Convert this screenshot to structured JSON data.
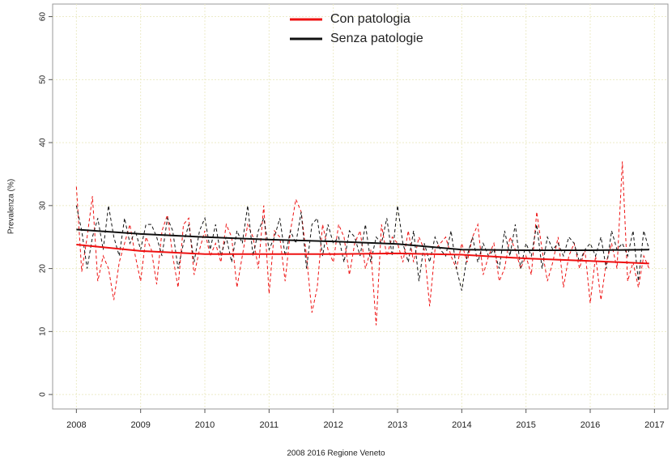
{
  "chart_data": {
    "type": "line",
    "x_label": "2008 2016 Regione Veneto",
    "y_label": "Prevalenza (%)",
    "xlim": [
      2007.63,
      2017.21
    ],
    "ylim": [
      -2.3,
      62
    ],
    "xticks": [
      2008,
      2009,
      2010,
      2011,
      2012,
      2013,
      2014,
      2015,
      2016,
      2017
    ],
    "yticks": [
      0,
      10,
      20,
      30,
      40,
      50,
      60
    ],
    "grid": true,
    "legend": "top",
    "x": [
      2008,
      2008.083,
      2008.167,
      2008.25,
      2008.333,
      2008.417,
      2008.5,
      2008.583,
      2008.667,
      2008.75,
      2008.833,
      2008.917,
      2009,
      2009.083,
      2009.167,
      2009.25,
      2009.333,
      2009.417,
      2009.5,
      2009.583,
      2009.667,
      2009.75,
      2009.833,
      2009.917,
      2010,
      2010.083,
      2010.167,
      2010.25,
      2010.333,
      2010.417,
      2010.5,
      2010.583,
      2010.667,
      2010.75,
      2010.833,
      2010.917,
      2011,
      2011.083,
      2011.167,
      2011.25,
      2011.333,
      2011.417,
      2011.5,
      2011.583,
      2011.667,
      2011.75,
      2011.833,
      2011.917,
      2012,
      2012.083,
      2012.167,
      2012.25,
      2012.333,
      2012.417,
      2012.5,
      2012.583,
      2012.667,
      2012.75,
      2012.833,
      2012.917,
      2013,
      2013.083,
      2013.167,
      2013.25,
      2013.333,
      2013.417,
      2013.5,
      2013.583,
      2013.667,
      2013.75,
      2013.833,
      2013.917,
      2014,
      2014.083,
      2014.167,
      2014.25,
      2014.333,
      2014.417,
      2014.5,
      2014.583,
      2014.667,
      2014.75,
      2014.833,
      2014.917,
      2015,
      2015.083,
      2015.167,
      2015.25,
      2015.333,
      2015.417,
      2015.5,
      2015.583,
      2015.667,
      2015.75,
      2015.833,
      2015.917,
      2016,
      2016.083,
      2016.167,
      2016.25,
      2016.333,
      2016.417,
      2016.5,
      2016.583,
      2016.667,
      2016.75,
      2016.833,
      2016.917
    ],
    "trend_x": [
      2008,
      2009,
      2010,
      2011,
      2012,
      2013,
      2014,
      2015,
      2016,
      2016.917
    ],
    "series": [
      {
        "name": "Con patologia",
        "color": "#ee1111",
        "values": [
          33,
          19.5,
          25,
          31.5,
          18,
          22,
          20,
          15,
          21,
          24,
          27,
          22,
          18,
          25,
          23,
          17.5,
          26,
          28.5,
          22,
          17,
          27,
          28,
          19,
          23,
          26,
          22,
          24,
          21,
          27,
          25,
          17,
          22,
          27,
          25,
          20,
          30,
          16,
          26,
          25,
          18,
          26,
          31,
          29,
          22,
          13,
          17,
          27,
          23,
          21,
          27,
          25,
          19,
          24,
          26,
          20,
          23,
          11,
          27,
          22,
          25,
          24,
          21,
          26,
          21,
          25,
          23,
          14,
          23,
          24,
          25,
          22,
          20,
          24,
          21,
          25,
          27,
          19,
          22,
          24,
          18,
          20,
          25,
          23,
          20,
          22,
          19,
          29,
          23,
          18,
          21,
          25,
          17,
          22,
          24,
          20,
          23,
          14.5,
          22,
          15,
          21,
          24,
          20,
          37,
          18,
          21,
          17,
          22,
          20
        ],
        "trend": [
          23.8,
          22.8,
          22.3,
          22.3,
          22.3,
          22.4,
          22.2,
          21.6,
          21.2,
          20.8
        ]
      },
      {
        "name": "Senza patologie",
        "color": "#111111",
        "values": [
          30,
          26,
          20,
          25,
          28,
          23,
          30,
          25,
          22,
          28,
          24,
          26,
          23,
          27,
          27,
          25,
          22,
          28,
          26,
          20,
          24,
          27,
          21,
          26,
          28,
          23,
          27,
          22,
          25,
          21,
          26,
          24,
          30,
          22,
          26,
          28,
          23,
          25,
          28,
          22,
          26,
          24,
          29,
          20,
          27,
          28,
          22,
          27,
          24,
          25,
          21,
          26,
          25,
          22,
          27,
          21,
          25,
          24,
          28,
          22,
          30,
          24,
          21,
          26,
          18,
          24,
          21,
          25,
          23,
          22,
          26,
          20,
          16.5,
          22,
          25,
          21,
          24,
          22,
          23,
          20,
          26,
          22,
          27,
          20,
          24,
          22,
          27,
          20,
          25,
          23,
          24,
          22,
          25,
          24,
          21,
          23,
          24,
          22,
          25,
          20,
          26,
          23,
          24,
          22,
          26,
          18,
          26,
          23
        ],
        "trend": [
          26.2,
          25.5,
          25.0,
          24.6,
          24.3,
          23.9,
          23.0,
          22.9,
          22.9,
          23.0
        ]
      }
    ]
  }
}
